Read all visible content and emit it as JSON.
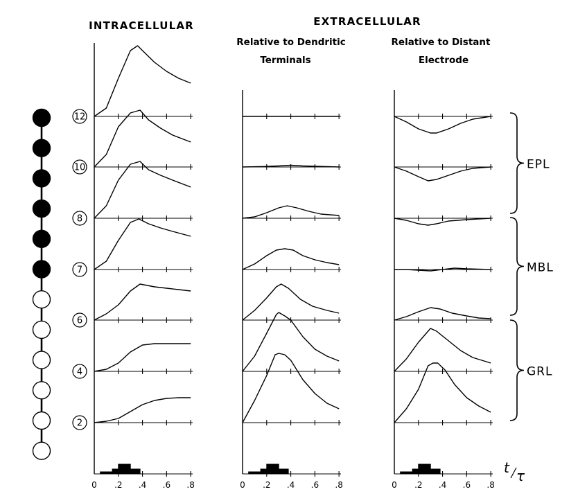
{
  "headers": {
    "intracellular": "INTRACELLULAR",
    "extracellular": "EXTRACELLULAR",
    "dendritic_line1": "Relative to Dendritic",
    "dendritic_line2": "Terminals",
    "distant_line1": "Relative to Distant",
    "distant_line2": "Electrode"
  },
  "compartments": [
    {
      "label": "12",
      "filled": true
    },
    {
      "label": "10",
      "filled": true
    },
    {
      "label": "8",
      "filled": true
    },
    {
      "label": "7",
      "filled": true
    },
    {
      "label": "6",
      "filled": true
    },
    {
      "label": "4",
      "filled": true
    },
    {
      "label": "2",
      "filled": false
    }
  ],
  "chain_circles": [
    true,
    true,
    true,
    true,
    true,
    true,
    false,
    false,
    false,
    false,
    false,
    false
  ],
  "regions": [
    {
      "label": "EPL",
      "from_row": 0,
      "to_row": 2
    },
    {
      "label": "MBL",
      "from_row": 2,
      "to_row": 4
    },
    {
      "label": "GRL",
      "from_row": 4,
      "to_row": 6
    }
  ],
  "x_ticks": [
    "0",
    ".2",
    ".4",
    ".6",
    ".8"
  ],
  "x_axis_label": {
    "t": "t",
    "tau": "τ"
  },
  "panels": [
    {
      "name": "intracellular",
      "traces": [
        [
          [
            0,
            0
          ],
          [
            0.1,
            12
          ],
          [
            0.2,
            55
          ],
          [
            0.3,
            95
          ],
          [
            0.36,
            102
          ],
          [
            0.4,
            95
          ],
          [
            0.5,
            78
          ],
          [
            0.6,
            65
          ],
          [
            0.7,
            55
          ],
          [
            0.8,
            48
          ]
        ],
        [
          [
            0,
            0
          ],
          [
            0.1,
            18
          ],
          [
            0.2,
            58
          ],
          [
            0.3,
            78
          ],
          [
            0.38,
            82
          ],
          [
            0.45,
            68
          ],
          [
            0.55,
            56
          ],
          [
            0.65,
            46
          ],
          [
            0.8,
            36
          ]
        ],
        [
          [
            0,
            0
          ],
          [
            0.1,
            18
          ],
          [
            0.2,
            55
          ],
          [
            0.3,
            78
          ],
          [
            0.38,
            82
          ],
          [
            0.45,
            70
          ],
          [
            0.55,
            62
          ],
          [
            0.65,
            55
          ],
          [
            0.8,
            45
          ]
        ],
        [
          [
            0,
            0
          ],
          [
            0.1,
            12
          ],
          [
            0.2,
            42
          ],
          [
            0.3,
            68
          ],
          [
            0.37,
            73
          ],
          [
            0.45,
            66
          ],
          [
            0.55,
            60
          ],
          [
            0.65,
            55
          ],
          [
            0.8,
            48
          ]
        ],
        [
          [
            0,
            0
          ],
          [
            0.1,
            9
          ],
          [
            0.2,
            22
          ],
          [
            0.3,
            42
          ],
          [
            0.38,
            52
          ],
          [
            0.5,
            48
          ],
          [
            0.6,
            46
          ],
          [
            0.7,
            44
          ],
          [
            0.8,
            42
          ]
        ],
        [
          [
            0,
            0
          ],
          [
            0.1,
            3
          ],
          [
            0.2,
            12
          ],
          [
            0.3,
            28
          ],
          [
            0.4,
            38
          ],
          [
            0.5,
            40
          ],
          [
            0.6,
            40
          ],
          [
            0.7,
            40
          ],
          [
            0.8,
            40
          ]
        ],
        [
          [
            0,
            0
          ],
          [
            0.1,
            2
          ],
          [
            0.2,
            6
          ],
          [
            0.3,
            16
          ],
          [
            0.4,
            26
          ],
          [
            0.5,
            32
          ],
          [
            0.6,
            35
          ],
          [
            0.7,
            36
          ],
          [
            0.8,
            36
          ]
        ]
      ],
      "stimulus": [
        [
          0,
          0
        ],
        [
          0.05,
          0
        ],
        [
          0.05,
          3
        ],
        [
          0.15,
          3
        ],
        [
          0.15,
          7
        ],
        [
          0.2,
          7
        ],
        [
          0.2,
          14
        ],
        [
          0.3,
          14
        ],
        [
          0.3,
          7
        ],
        [
          0.38,
          7
        ],
        [
          0.38,
          0
        ]
      ]
    },
    {
      "name": "dendritic",
      "traces": [
        [
          [
            0,
            0
          ],
          [
            0.2,
            0
          ],
          [
            0.4,
            0
          ],
          [
            0.6,
            0
          ],
          [
            0.8,
            0
          ]
        ],
        [
          [
            0,
            0
          ],
          [
            0.15,
            0.5
          ],
          [
            0.3,
            1.5
          ],
          [
            0.4,
            2.5
          ],
          [
            0.5,
            1.5
          ],
          [
            0.65,
            0.8
          ],
          [
            0.8,
            0
          ]
        ],
        [
          [
            0,
            0
          ],
          [
            0.1,
            2
          ],
          [
            0.2,
            8
          ],
          [
            0.3,
            15
          ],
          [
            0.37,
            18
          ],
          [
            0.45,
            15
          ],
          [
            0.55,
            10
          ],
          [
            0.65,
            6
          ],
          [
            0.8,
            4
          ]
        ],
        [
          [
            0,
            0
          ],
          [
            0.1,
            8
          ],
          [
            0.2,
            20
          ],
          [
            0.28,
            28
          ],
          [
            0.35,
            30
          ],
          [
            0.42,
            28
          ],
          [
            0.5,
            20
          ],
          [
            0.6,
            14
          ],
          [
            0.7,
            10
          ],
          [
            0.8,
            7
          ]
        ],
        [
          [
            0,
            0
          ],
          [
            0.1,
            14
          ],
          [
            0.2,
            32
          ],
          [
            0.28,
            48
          ],
          [
            0.32,
            52
          ],
          [
            0.38,
            46
          ],
          [
            0.48,
            30
          ],
          [
            0.58,
            20
          ],
          [
            0.7,
            14
          ],
          [
            0.8,
            10
          ]
        ],
        [
          [
            0,
            0
          ],
          [
            0.1,
            22
          ],
          [
            0.2,
            55
          ],
          [
            0.28,
            82
          ],
          [
            0.3,
            85
          ],
          [
            0.35,
            80
          ],
          [
            0.4,
            74
          ],
          [
            0.5,
            50
          ],
          [
            0.6,
            32
          ],
          [
            0.7,
            22
          ],
          [
            0.8,
            15
          ]
        ],
        [
          [
            0,
            0
          ],
          [
            0.1,
            32
          ],
          [
            0.2,
            68
          ],
          [
            0.27,
            98
          ],
          [
            0.3,
            100
          ],
          [
            0.35,
            98
          ],
          [
            0.4,
            90
          ],
          [
            0.5,
            62
          ],
          [
            0.6,
            42
          ],
          [
            0.7,
            28
          ],
          [
            0.8,
            20
          ]
        ]
      ],
      "stimulus": [
        [
          0,
          0
        ],
        [
          0.05,
          0
        ],
        [
          0.05,
          3
        ],
        [
          0.15,
          3
        ],
        [
          0.15,
          7
        ],
        [
          0.2,
          7
        ],
        [
          0.2,
          14
        ],
        [
          0.3,
          14
        ],
        [
          0.3,
          7
        ],
        [
          0.38,
          7
        ],
        [
          0.38,
          0
        ]
      ]
    },
    {
      "name": "distant",
      "traces": [
        [
          [
            0,
            0
          ],
          [
            0.1,
            -8
          ],
          [
            0.2,
            -18
          ],
          [
            0.3,
            -24
          ],
          [
            0.35,
            -24
          ],
          [
            0.45,
            -18
          ],
          [
            0.55,
            -10
          ],
          [
            0.65,
            -4
          ],
          [
            0.8,
            0
          ]
        ],
        [
          [
            0,
            0
          ],
          [
            0.1,
            -6
          ],
          [
            0.2,
            -14
          ],
          [
            0.28,
            -20
          ],
          [
            0.35,
            -18
          ],
          [
            0.45,
            -12
          ],
          [
            0.55,
            -6
          ],
          [
            0.65,
            -2
          ],
          [
            0.8,
            0
          ]
        ],
        [
          [
            0,
            0
          ],
          [
            0.1,
            -3
          ],
          [
            0.2,
            -8
          ],
          [
            0.28,
            -10
          ],
          [
            0.35,
            -8
          ],
          [
            0.45,
            -4
          ],
          [
            0.6,
            -2
          ],
          [
            0.8,
            0
          ]
        ],
        [
          [
            0,
            0
          ],
          [
            0.1,
            0
          ],
          [
            0.2,
            -1
          ],
          [
            0.3,
            -2
          ],
          [
            0.4,
            0
          ],
          [
            0.5,
            2
          ],
          [
            0.6,
            1
          ],
          [
            0.8,
            0
          ]
        ],
        [
          [
            0,
            0
          ],
          [
            0.1,
            5
          ],
          [
            0.2,
            12
          ],
          [
            0.3,
            18
          ],
          [
            0.38,
            16
          ],
          [
            0.48,
            10
          ],
          [
            0.6,
            6
          ],
          [
            0.7,
            3
          ],
          [
            0.8,
            2
          ]
        ],
        [
          [
            0,
            0
          ],
          [
            0.1,
            18
          ],
          [
            0.2,
            42
          ],
          [
            0.3,
            62
          ],
          [
            0.35,
            58
          ],
          [
            0.45,
            44
          ],
          [
            0.55,
            30
          ],
          [
            0.65,
            20
          ],
          [
            0.8,
            12
          ]
        ],
        [
          [
            0,
            0
          ],
          [
            0.1,
            20
          ],
          [
            0.2,
            48
          ],
          [
            0.28,
            82
          ],
          [
            0.32,
            86
          ],
          [
            0.36,
            86
          ],
          [
            0.42,
            76
          ],
          [
            0.5,
            55
          ],
          [
            0.6,
            36
          ],
          [
            0.7,
            24
          ],
          [
            0.8,
            15
          ]
        ]
      ],
      "stimulus": [
        [
          0,
          0
        ],
        [
          0.05,
          0
        ],
        [
          0.05,
          3
        ],
        [
          0.15,
          3
        ],
        [
          0.15,
          7
        ],
        [
          0.2,
          7
        ],
        [
          0.2,
          14
        ],
        [
          0.3,
          14
        ],
        [
          0.3,
          7
        ],
        [
          0.38,
          7
        ],
        [
          0.38,
          0
        ]
      ]
    }
  ]
}
